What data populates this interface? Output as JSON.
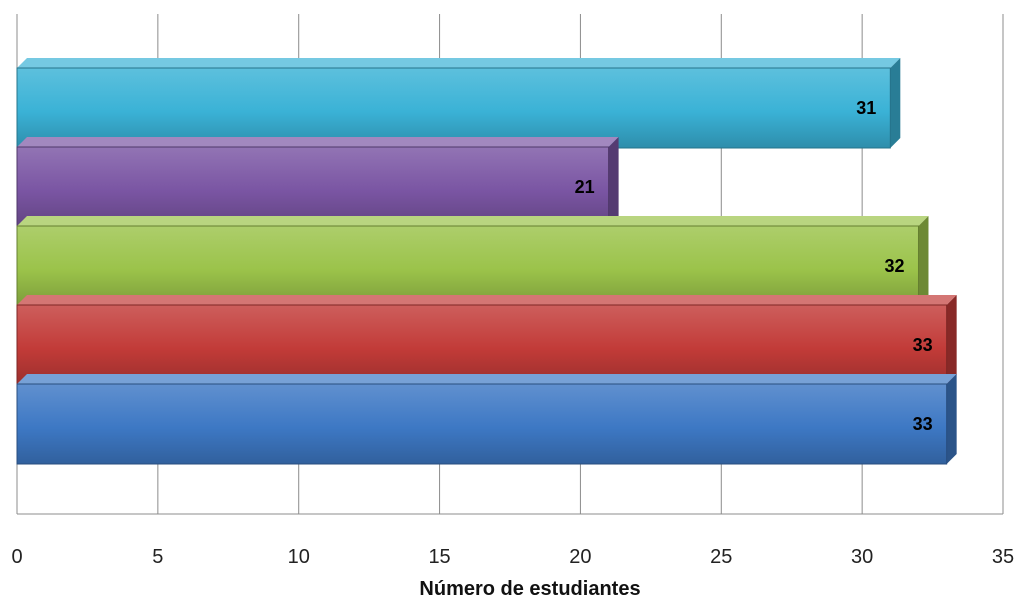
{
  "chart_data": {
    "type": "bar",
    "orientation": "horizontal",
    "series": [
      {
        "value": 33,
        "color": "#3d78c4"
      },
      {
        "value": 33,
        "color": "#c23b38"
      },
      {
        "value": 32,
        "color": "#9bc34a"
      },
      {
        "value": 21,
        "color": "#7a55a3"
      },
      {
        "value": 31,
        "color": "#3ab2d6"
      }
    ],
    "data_labels": [
      "33",
      "33",
      "32",
      "21",
      "31"
    ],
    "xlabel": "Número de estudiantes",
    "xlim": [
      0,
      35
    ],
    "x_ticks": [
      "0",
      "5",
      "10",
      "15",
      "20",
      "25",
      "30",
      "35"
    ],
    "grid": "vertical",
    "legend": "none"
  }
}
